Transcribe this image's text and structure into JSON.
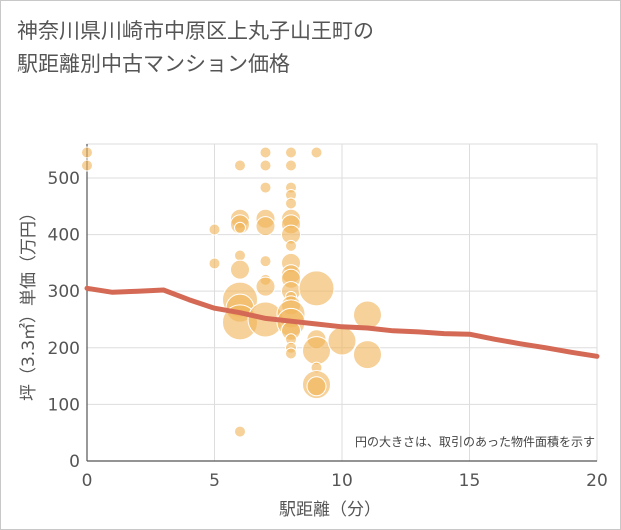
{
  "title_lines": [
    "神奈川県川崎市中原区上丸子山王町の",
    "駅距離別中古マンション価格"
  ],
  "chart_data": {
    "type": "scatter",
    "xlabel": "駅距離（分）",
    "ylabel": "坪（3.3㎡）単価（万円）",
    "xlim": [
      0,
      20
    ],
    "ylim": [
      0,
      560
    ],
    "x_ticks": [
      0,
      5,
      10,
      15,
      20
    ],
    "y_ticks": [
      0,
      100,
      200,
      300,
      400,
      500
    ],
    "grid": true,
    "note": "円の大きさは、取引のあった物件面積を示す",
    "colors": {
      "bubble": "#f0b45a",
      "trend": "#d46a55",
      "grid": "#dddddd",
      "axis": "#555555"
    },
    "points": [
      {
        "x": 0,
        "y": 545,
        "s": 1
      },
      {
        "x": 0,
        "y": 522,
        "s": 1
      },
      {
        "x": 5,
        "y": 409,
        "s": 1
      },
      {
        "x": 5,
        "y": 349,
        "s": 1
      },
      {
        "x": 6,
        "y": 522,
        "s": 1
      },
      {
        "x": 6,
        "y": 428,
        "s": 2
      },
      {
        "x": 6,
        "y": 418,
        "s": 2
      },
      {
        "x": 6,
        "y": 412,
        "s": 1
      },
      {
        "x": 6,
        "y": 363,
        "s": 1
      },
      {
        "x": 6,
        "y": 338,
        "s": 2
      },
      {
        "x": 6,
        "y": 285,
        "s": 4
      },
      {
        "x": 6,
        "y": 270,
        "s": 3
      },
      {
        "x": 6,
        "y": 245,
        "s": 4
      },
      {
        "x": 6,
        "y": 52,
        "s": 1
      },
      {
        "x": 7,
        "y": 545,
        "s": 1
      },
      {
        "x": 7,
        "y": 522,
        "s": 1
      },
      {
        "x": 7,
        "y": 483,
        "s": 1
      },
      {
        "x": 7,
        "y": 428,
        "s": 2
      },
      {
        "x": 7,
        "y": 415,
        "s": 2
      },
      {
        "x": 7,
        "y": 353,
        "s": 1
      },
      {
        "x": 7,
        "y": 320,
        "s": 1
      },
      {
        "x": 7,
        "y": 308,
        "s": 2
      },
      {
        "x": 7,
        "y": 250,
        "s": 4
      },
      {
        "x": 8,
        "y": 545,
        "s": 1
      },
      {
        "x": 8,
        "y": 522,
        "s": 1
      },
      {
        "x": 8,
        "y": 483,
        "s": 1
      },
      {
        "x": 8,
        "y": 470,
        "s": 1
      },
      {
        "x": 8,
        "y": 455,
        "s": 1
      },
      {
        "x": 8,
        "y": 428,
        "s": 2
      },
      {
        "x": 8,
        "y": 418,
        "s": 2
      },
      {
        "x": 8,
        "y": 400,
        "s": 2
      },
      {
        "x": 8,
        "y": 380,
        "s": 1
      },
      {
        "x": 8,
        "y": 350,
        "s": 2
      },
      {
        "x": 8,
        "y": 330,
        "s": 2
      },
      {
        "x": 8,
        "y": 322,
        "s": 2
      },
      {
        "x": 8,
        "y": 300,
        "s": 2
      },
      {
        "x": 8,
        "y": 290,
        "s": 1
      },
      {
        "x": 8,
        "y": 275,
        "s": 2
      },
      {
        "x": 8,
        "y": 260,
        "s": 3
      },
      {
        "x": 8,
        "y": 245,
        "s": 3
      },
      {
        "x": 8,
        "y": 230,
        "s": 2
      },
      {
        "x": 8,
        "y": 215,
        "s": 1
      },
      {
        "x": 8,
        "y": 200,
        "s": 1
      },
      {
        "x": 8,
        "y": 190,
        "s": 1
      },
      {
        "x": 9,
        "y": 545,
        "s": 1
      },
      {
        "x": 9,
        "y": 305,
        "s": 4
      },
      {
        "x": 9,
        "y": 215,
        "s": 2
      },
      {
        "x": 9,
        "y": 195,
        "s": 3
      },
      {
        "x": 9,
        "y": 165,
        "s": 1
      },
      {
        "x": 9,
        "y": 135,
        "s": 3
      },
      {
        "x": 9,
        "y": 132,
        "s": 2
      },
      {
        "x": 10,
        "y": 212,
        "s": 3
      },
      {
        "x": 11,
        "y": 258,
        "s": 3
      },
      {
        "x": 11,
        "y": 188,
        "s": 3
      }
    ],
    "trend": {
      "x": [
        0,
        1,
        2,
        3,
        4,
        5,
        6,
        7,
        8,
        9,
        10,
        11,
        12,
        13,
        14,
        15,
        16,
        17,
        18,
        19,
        20
      ],
      "y": [
        305,
        298,
        300,
        302,
        285,
        270,
        262,
        252,
        247,
        242,
        237,
        235,
        230,
        228,
        225,
        224,
        215,
        207,
        200,
        192,
        185
      ]
    }
  }
}
